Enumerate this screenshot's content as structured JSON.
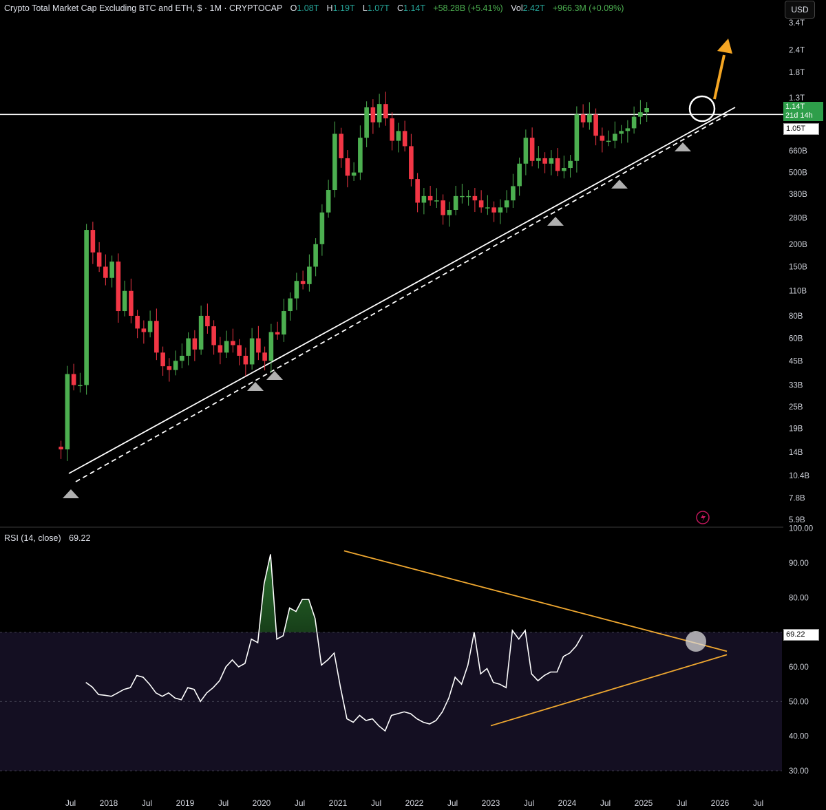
{
  "header": {
    "title": "Crypto Total Market Cap Excluding BTC and ETH, $ · 1M · CRYPTOCAP",
    "open_label": "O",
    "open": "1.08T",
    "high_label": "H",
    "high": "1.19T",
    "low_label": "L",
    "low": "1.07T",
    "close_label": "C",
    "close": "1.14T",
    "change": "+58.28B (+5.41%)",
    "vol_label": "Vol",
    "vol": "2.42T",
    "vol_change": "+966.3M (+0.09%)"
  },
  "currency_button": "USD",
  "price_tag": {
    "price": "1.14T",
    "countdown": "21d 14h",
    "level": "1.05T"
  },
  "colors": {
    "up": "#4caf50",
    "down": "#f23645",
    "trend": "#ffffff",
    "rsi_line": "#ffffff",
    "rsi_trend": "#f0a830",
    "arrow": "#f5a623"
  },
  "chart_data": [
    {
      "type": "candlestick",
      "scale": "log",
      "y_ticks": [
        "3.4T",
        "2.4T",
        "1.8T",
        "1.3T",
        "1.05T",
        "660B",
        "500B",
        "380B",
        "280B",
        "200B",
        "150B",
        "110B",
        "80B",
        "60B",
        "45B",
        "33B",
        "25B",
        "19B",
        "14B",
        "10.4B",
        "7.8B",
        "5.9B"
      ],
      "x_ticks": [
        "Jul",
        "2018",
        "Jul",
        "2019",
        "Jul",
        "2020",
        "Jul",
        "2021",
        "Jul",
        "2022",
        "Jul",
        "2023",
        "Jul",
        "2024",
        "Jul",
        "2025",
        "Jul",
        "2026",
        "Jul"
      ],
      "horizontal_level": 1050000000000.0,
      "monthly_close_approx": [
        14500000000.0,
        38000000000.0,
        33000000000.0,
        33000000000.0,
        240000000000.0,
        180000000000.0,
        150000000000.0,
        130000000000.0,
        160000000000.0,
        85000000000.0,
        110000000000.0,
        80000000000.0,
        68000000000.0,
        65000000000.0,
        75000000000.0,
        50000000000.0,
        42000000000.0,
        40000000000.0,
        45000000000.0,
        48000000000.0,
        60000000000.0,
        52000000000.0,
        80000000000.0,
        70000000000.0,
        55000000000.0,
        50000000000.0,
        58000000000.0,
        55000000000.0,
        48000000000.0,
        43000000000.0,
        60000000000.0,
        50000000000.0,
        45000000000.0,
        65000000000.0,
        63000000000.0,
        85000000000.0,
        100000000000.0,
        125000000000.0,
        120000000000.0,
        150000000000.0,
        200000000000.0,
        300000000000.0,
        400000000000.0,
        820000000000.0,
        600000000000.0,
        480000000000.0,
        500000000000.0,
        780000000000.0,
        1150000000000.0,
        950000000000.0,
        1200000000000.0,
        1000000000000.0,
        750000000000.0,
        850000000000.0,
        700000000000.0,
        460000000000.0,
        340000000000.0,
        370000000000.0,
        350000000000.0,
        350000000000.0,
        290000000000.0,
        310000000000.0,
        370000000000.0,
        370000000000.0,
        370000000000.0,
        350000000000.0,
        320000000000.0,
        320000000000.0,
        300000000000.0,
        320000000000.0,
        350000000000.0,
        420000000000.0,
        560000000000.0,
        780000000000.0,
        580000000000.0,
        600000000000.0,
        560000000000.0,
        600000000000.0,
        510000000000.0,
        530000000000.0,
        580000000000.0,
        1050000000000.0,
        950000000000.0,
        1050000000000.0,
        800000000000.0,
        750000000000.0,
        750000000000.0,
        820000000000.0,
        850000000000.0,
        880000000000.0,
        1020000000000.0,
        1080000000000.0,
        1140000000000.0
      ]
    },
    {
      "type": "line",
      "label": "RSI (14, close)",
      "value": "69.22",
      "y_ticks": [
        "100.00",
        "90.00",
        "80.00",
        "70.00",
        "60.00",
        "50.00",
        "40.00",
        "30.00"
      ],
      "ylim": [
        30,
        100
      ],
      "x_start": 2017.7,
      "values": [
        55.5,
        54.2,
        52,
        51.8,
        51.5,
        52.5,
        53.5,
        54,
        57.5,
        57,
        55,
        52.5,
        51.5,
        52.5,
        51,
        50.5,
        54,
        53.5,
        50,
        52.5,
        54,
        56,
        60,
        62,
        60,
        61,
        68,
        67,
        84,
        92.5,
        68,
        69,
        77,
        76,
        79.5,
        79.5,
        74,
        60.5,
        62,
        64,
        54,
        45,
        44,
        46,
        44.5,
        45,
        43,
        41.5,
        46,
        46.5,
        47,
        46.5,
        45,
        44,
        43.5,
        44.5,
        47,
        51,
        57,
        55,
        60.5,
        70,
        58,
        59.5,
        55.5,
        55,
        54,
        70.5,
        68,
        70.5,
        58,
        56,
        57.5,
        58.5,
        58.5,
        63,
        64,
        66,
        69.22
      ],
      "trendlines": [
        {
          "from": [
            2021.08,
            93.5
          ],
          "to": [
            2026.0,
            64.5
          ]
        },
        {
          "from": [
            2023.0,
            43
          ],
          "to": [
            2026.0,
            63.5
          ]
        }
      ]
    }
  ]
}
